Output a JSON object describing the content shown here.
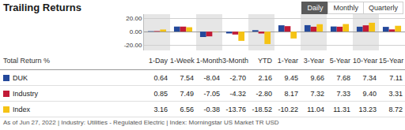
{
  "title": "Trailing Returns",
  "tabs": [
    "Daily",
    "Monthly",
    "Quarterly"
  ],
  "active_tab": "Daily",
  "chart_data": {
    "type": "bar",
    "categories": [
      "1-Day",
      "1-Week",
      "1-Month",
      "3-Month",
      "YTD",
      "1-Year",
      "3-Year",
      "5-Year",
      "10-Year",
      "15-Year"
    ],
    "series": [
      {
        "name": "DUK",
        "color": "#24499b",
        "values": [
          0.64,
          7.54,
          -8.04,
          -2.7,
          2.16,
          9.45,
          9.66,
          7.68,
          7.34,
          7.11
        ],
        "value_labels": [
          "0.64",
          "7.54",
          "-8.04",
          "-2.70",
          "2.16",
          "9.45",
          "9.66",
          "7.68",
          "7.34",
          "7.11"
        ]
      },
      {
        "name": "Industry",
        "color": "#c21b37",
        "values": [
          0.85,
          7.49,
          -7.05,
          -4.32,
          -2.8,
          8.17,
          7.32,
          7.33,
          9.4,
          3.31
        ],
        "value_labels": [
          "0.85",
          "7.49",
          "-7.05",
          "-4.32",
          "-2.80",
          "8.17",
          "7.32",
          "7.33",
          "9.40",
          "3.31"
        ]
      },
      {
        "name": "Index",
        "color": "#f5c315",
        "values": [
          3.16,
          6.56,
          -0.38,
          -13.76,
          -18.52,
          -10.22,
          11.04,
          11.31,
          13.23,
          8.72
        ],
        "value_labels": [
          "3.16",
          "6.56",
          "-0.38",
          "-13.76",
          "-18.52",
          "-10.22",
          "11.04",
          "11.31",
          "13.23",
          "8.72"
        ]
      }
    ],
    "ylim": [
      -28,
      26
    ],
    "yticks": [
      {
        "value": 20,
        "label": "20.00"
      },
      {
        "value": 0,
        "label": "0.00"
      },
      {
        "value": -20,
        "label": "-20.00"
      }
    ],
    "grid": true,
    "tick_labels": "y"
  },
  "table": {
    "header": "Total Return %"
  },
  "footnote": "As of Jun 27, 2022 | Industry: Utilities - Regulated Electric | Index: Morningstar US Market TR USD"
}
